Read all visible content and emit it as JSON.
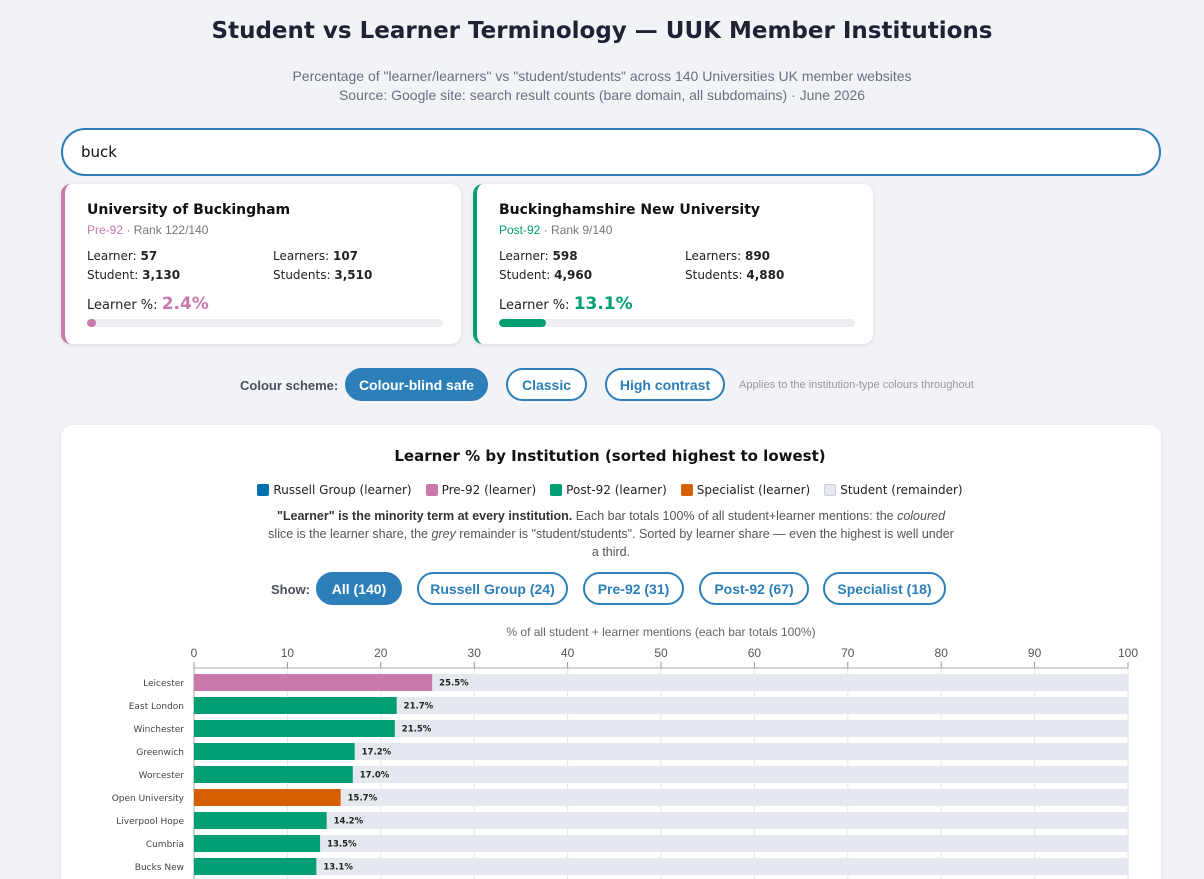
{
  "header": {
    "title": "Student vs Learner Terminology — UUK Member Institutions",
    "subtitle_line1": "Percentage of \"learner/learners\" vs \"student/students\" across 140 Universities UK member websites",
    "subtitle_line2": "Source: Google site: search result counts (bare domain, all subdomains) · June 2026"
  },
  "search": {
    "value": "buck"
  },
  "cards": [
    {
      "name": "University of Buckingham",
      "type": "Pre-92",
      "rank": "Rank 122/140",
      "learner_label": "Learner:",
      "learner": "57",
      "learners_label": "Learners:",
      "learners": "107",
      "student_label": "Student:",
      "student": "3,130",
      "students_label": "Students:",
      "students": "3,510",
      "pct_label": "Learner %:",
      "pct": "2.4%",
      "pct_value": 2.4
    },
    {
      "name": "Buckinghamshire New University",
      "type": "Post-92",
      "rank": "Rank 9/140",
      "learner_label": "Learner:",
      "learner": "598",
      "learners_label": "Learners:",
      "learners": "890",
      "student_label": "Student:",
      "student": "4,960",
      "students_label": "Students:",
      "students": "4,880",
      "pct_label": "Learner %:",
      "pct": "13.1%",
      "pct_value": 13.1
    }
  ],
  "scheme": {
    "label": "Colour scheme:",
    "options": [
      "Colour-blind safe",
      "Classic",
      "High contrast"
    ],
    "selected": "Colour-blind safe",
    "note": "Applies to the institution-type colours throughout"
  },
  "colors": {
    "accent": "#2c7fb8",
    "russell": "#0072b2",
    "pre92": "#c979aa",
    "post92": "#009e73",
    "specialist": "#d55e00",
    "remainder": "#e5e8ee"
  },
  "chart_title": "Learner % by Institution (sorted highest to lowest)",
  "legend": [
    "Russell Group (learner)",
    "Pre-92 (learner)",
    "Post-92 (learner)",
    "Specialist (learner)",
    "Student (remainder)"
  ],
  "note": {
    "bold": "\"Learner\" is the minority term at every institution.",
    "part1": " Each bar totals 100% of all student+learner mentions: the ",
    "em1": "coloured",
    "part2": " slice is the learner share, the ",
    "em2": "grey",
    "part3": " remainder is \"student/students\". Sorted by learner share — even the highest is well under a third."
  },
  "filter": {
    "label": "Show:",
    "options": [
      "All (140)",
      "Russell Group (24)",
      "Pre-92 (31)",
      "Post-92 (67)",
      "Specialist (18)"
    ],
    "selected": "All (140)"
  },
  "chart_data": {
    "type": "bar",
    "orientation": "horizontal",
    "stacked": true,
    "xlabel": "% of all student + learner mentions (each bar totals 100%)",
    "xlim": [
      0,
      100
    ],
    "xticks": [
      0,
      10,
      20,
      30,
      40,
      50,
      60,
      70,
      80,
      90,
      100
    ],
    "grid": true,
    "legend_position": "top",
    "categories": [
      "Leicester",
      "East London",
      "Winchester",
      "Greenwich",
      "Worcester",
      "Open University",
      "Liverpool Hope",
      "Cumbria",
      "Bucks New"
    ],
    "types": [
      "pre92",
      "post92",
      "post92",
      "post92",
      "post92",
      "specialist",
      "post92",
      "post92",
      "post92"
    ],
    "values": [
      25.5,
      21.7,
      21.5,
      17.2,
      17.0,
      15.7,
      14.2,
      13.5,
      13.1
    ],
    "labels": [
      "25.5%",
      "21.7%",
      "21.5%",
      "17.2%",
      "17.0%",
      "15.7%",
      "14.2%",
      "13.5%",
      "13.1%"
    ]
  }
}
